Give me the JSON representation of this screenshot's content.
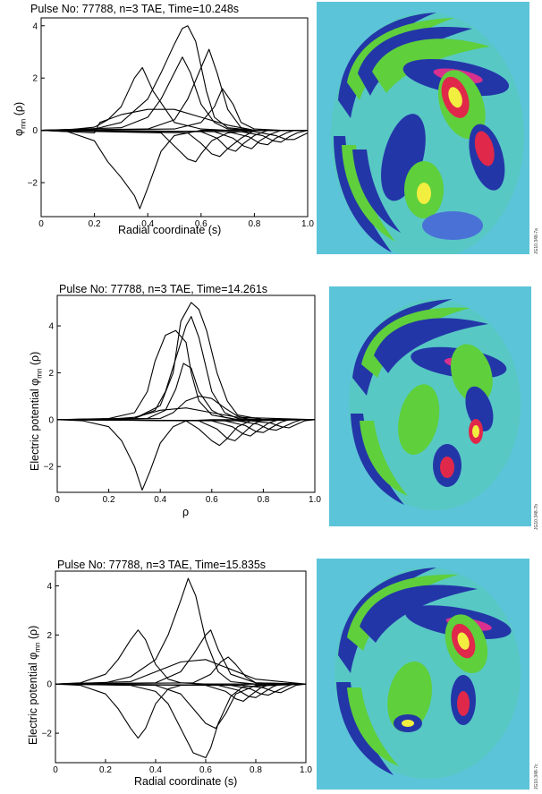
{
  "colors": {
    "cyan_bg": "#5cc4d8",
    "green": "#5fcf3c",
    "dark_green": "#2f8f3a",
    "blue": "#2336a8",
    "light_blue": "#4a72d6",
    "red": "#e0284a",
    "yellow": "#f2ee40",
    "magenta": "#d8308c"
  },
  "panels": [
    {
      "title": "Pulse No: 77788,    n=3 TAE, Time=10.248s",
      "ylabel_main": "φ",
      "ylabel_sub": "mn",
      "ylabel_tail": " (ρ)",
      "xlabel": "Radial coordinate (s)",
      "code": "JG10.348-7a"
    },
    {
      "title": "Pulse No: 77788,    n=3 TAE, Time=14.261s",
      "ylabel_main": "Electric potential φ",
      "ylabel_sub": "mn",
      "ylabel_tail": " (ρ)",
      "xlabel": "ρ",
      "code": "JG10.348-7b"
    },
    {
      "title": "Pulse No: 77788,    n=3 TAE, Time=15.835s",
      "ylabel_main": "Electric potential φ",
      "ylabel_sub": "mn",
      "ylabel_tail": " (ρ)",
      "xlabel": "Radial coordinate (s)",
      "code": "JG10.348-7c"
    }
  ],
  "chart_data": [
    {
      "type": "line",
      "title": "Pulse No: 77788,    n=3 TAE, Time=10.248s",
      "xlabel": "Radial coordinate (s)",
      "ylabel": "φmn (ρ)",
      "xlim": [
        0,
        1
      ],
      "ylim": [
        -3.3,
        4.3
      ],
      "xticks": [
        0,
        0.2,
        0.4,
        0.6,
        0.8,
        1.0
      ],
      "xtick_labels": [
        "0",
        "0.2",
        "0.4",
        "0.6",
        "0.8",
        "1.0"
      ],
      "yticks": [
        -2,
        0,
        2,
        4
      ],
      "ytick_labels": [
        "−2",
        "0",
        "2",
        "4"
      ],
      "series": [
        {
          "x": [
            0,
            0.1,
            0.2,
            0.25,
            0.3,
            0.35,
            0.38,
            0.42,
            0.5,
            0.6,
            0.7,
            0.8,
            0.9,
            1.0
          ],
          "y": [
            0,
            0.02,
            0.12,
            0.4,
            0.9,
            2.0,
            2.4,
            1.5,
            0.3,
            0.05,
            0,
            0,
            0,
            0
          ]
        },
        {
          "x": [
            0,
            0.1,
            0.2,
            0.25,
            0.3,
            0.35,
            0.37,
            0.4,
            0.45,
            0.5,
            0.6,
            0.7,
            0.8,
            1.0
          ],
          "y": [
            0,
            -0.05,
            -0.4,
            -1.2,
            -1.8,
            -2.5,
            -3.0,
            -2.2,
            -0.8,
            -0.2,
            0,
            0,
            0,
            0
          ]
        },
        {
          "x": [
            0,
            0.2,
            0.3,
            0.4,
            0.45,
            0.5,
            0.53,
            0.55,
            0.58,
            0.62,
            0.65,
            0.7,
            0.8,
            1.0
          ],
          "y": [
            0,
            0.05,
            0.3,
            1.2,
            2.2,
            3.3,
            3.9,
            4.0,
            3.4,
            1.5,
            0.5,
            0.1,
            0,
            0
          ]
        },
        {
          "x": [
            0,
            0.3,
            0.4,
            0.45,
            0.5,
            0.53,
            0.56,
            0.6,
            0.65,
            0.7,
            0.8,
            1.0
          ],
          "y": [
            0,
            0.1,
            0.5,
            1.2,
            2.2,
            2.8,
            2.2,
            1.0,
            0.3,
            0.05,
            0,
            0
          ]
        },
        {
          "x": [
            0,
            0.4,
            0.5,
            0.55,
            0.6,
            0.63,
            0.66,
            0.7,
            0.75,
            0.8,
            0.9,
            1.0
          ],
          "y": [
            0,
            0.05,
            0.4,
            1.2,
            2.4,
            3.1,
            2.2,
            0.8,
            0.1,
            0,
            0,
            0
          ]
        },
        {
          "x": [
            0,
            0.2,
            0.22,
            0.3,
            0.4,
            0.5,
            0.6,
            0.7,
            0.8,
            1.0
          ],
          "y": [
            0,
            -0.1,
            0.3,
            0.6,
            0.8,
            0.8,
            0.5,
            0.2,
            0,
            0
          ]
        },
        {
          "x": [
            0,
            0.5,
            0.6,
            0.65,
            0.68,
            0.72,
            0.75,
            0.8,
            0.9,
            1.0
          ],
          "y": [
            0,
            0.05,
            0.3,
            0.9,
            1.6,
            1.0,
            0.3,
            0.05,
            0,
            0
          ]
        },
        {
          "x": [
            0,
            0.45,
            0.5,
            0.55,
            0.58,
            0.6,
            0.64,
            0.7,
            0.8,
            1.0
          ],
          "y": [
            0,
            -0.1,
            -0.6,
            -1.1,
            -1.2,
            -0.9,
            -0.4,
            -0.1,
            0,
            0
          ]
        },
        {
          "x": [
            0,
            0.55,
            0.6,
            0.64,
            0.67,
            0.7,
            0.75,
            0.8,
            0.9,
            1.0
          ],
          "y": [
            0,
            -0.1,
            -0.5,
            -0.9,
            -1.0,
            -0.7,
            -0.3,
            0,
            0,
            0
          ]
        },
        {
          "x": [
            0,
            0.6,
            0.66,
            0.7,
            0.73,
            0.76,
            0.8,
            0.85,
            0.9,
            1.0
          ],
          "y": [
            0,
            -0.05,
            -0.3,
            -0.7,
            -0.8,
            -0.5,
            -0.2,
            0,
            0,
            0
          ]
        },
        {
          "x": [
            0,
            0.65,
            0.72,
            0.76,
            0.79,
            0.82,
            0.86,
            0.9,
            0.95,
            1.0
          ],
          "y": [
            0,
            -0.05,
            -0.3,
            -0.6,
            -0.7,
            -0.4,
            -0.15,
            0,
            0,
            0
          ]
        },
        {
          "x": [
            0,
            0.7,
            0.78,
            0.82,
            0.85,
            0.88,
            0.92,
            0.95,
            1.0
          ],
          "y": [
            0,
            -0.05,
            -0.25,
            -0.5,
            -0.55,
            -0.3,
            -0.1,
            0,
            0
          ]
        },
        {
          "x": [
            0,
            0.75,
            0.83,
            0.87,
            0.9,
            0.93,
            0.96,
            1.0
          ],
          "y": [
            0,
            -0.05,
            -0.2,
            -0.4,
            -0.45,
            -0.25,
            -0.1,
            0
          ]
        },
        {
          "x": [
            0,
            0.8,
            0.88,
            0.92,
            0.95,
            0.98,
            1.0
          ],
          "y": [
            0,
            -0.05,
            -0.2,
            -0.35,
            -0.35,
            -0.2,
            -0.1
          ]
        }
      ]
    },
    {
      "type": "line",
      "title": "Pulse No: 77788,    n=3 TAE, Time=14.261s",
      "xlabel": "ρ",
      "ylabel": "Electric potential φmn (ρ)",
      "xlim": [
        0,
        1
      ],
      "ylim": [
        -3.1,
        5.3
      ],
      "xticks": [
        0,
        0.2,
        0.4,
        0.6,
        0.8,
        1.0
      ],
      "xtick_labels": [
        "0",
        "0.2",
        "0.4",
        "0.6",
        "0.8",
        "1.0"
      ],
      "yticks": [
        -2,
        0,
        2,
        4
      ],
      "ytick_labels": [
        "−2",
        "0",
        "2",
        "4"
      ],
      "series": [
        {
          "x": [
            0,
            0.1,
            0.2,
            0.25,
            0.3,
            0.33,
            0.36,
            0.4,
            0.45,
            0.5,
            0.6,
            0.8,
            1.0
          ],
          "y": [
            0,
            -0.05,
            -0.3,
            -0.9,
            -2.0,
            -3.0,
            -2.2,
            -1.0,
            -0.3,
            -0.05,
            0,
            0,
            0
          ]
        },
        {
          "x": [
            0,
            0.2,
            0.3,
            0.35,
            0.38,
            0.42,
            0.46,
            0.5,
            0.52,
            0.55,
            0.6,
            0.7,
            0.8,
            1.0
          ],
          "y": [
            0,
            0.05,
            0.3,
            1.2,
            2.5,
            3.6,
            3.8,
            3.3,
            2.0,
            0.8,
            0.2,
            0,
            0,
            0
          ]
        },
        {
          "x": [
            0,
            0.3,
            0.38,
            0.42,
            0.46,
            0.5,
            0.52,
            0.55,
            0.6,
            0.65,
            0.7,
            0.8,
            1.0
          ],
          "y": [
            0,
            0.05,
            0.4,
            1.2,
            2.6,
            4.0,
            4.4,
            3.5,
            1.2,
            0.3,
            0.05,
            0,
            0
          ]
        },
        {
          "x": [
            0,
            0.3,
            0.4,
            0.45,
            0.48,
            0.52,
            0.55,
            0.58,
            0.62,
            0.66,
            0.7,
            0.8,
            1.0
          ],
          "y": [
            0,
            0.05,
            0.6,
            2.0,
            4.2,
            5.0,
            4.7,
            3.8,
            2.0,
            0.8,
            0.2,
            0,
            0
          ]
        },
        {
          "x": [
            0,
            0.35,
            0.42,
            0.46,
            0.49,
            0.52,
            0.55,
            0.6,
            0.65,
            0.7,
            1.0
          ],
          "y": [
            0,
            0.05,
            0.4,
            1.3,
            2.4,
            2.2,
            1.2,
            0.4,
            0.1,
            0,
            0
          ]
        },
        {
          "x": [
            0,
            0.4,
            0.45,
            0.5,
            0.55,
            0.6,
            0.65,
            0.7,
            0.75,
            1.0
          ],
          "y": [
            0,
            0.05,
            0.3,
            0.8,
            1.0,
            0.9,
            0.5,
            0.15,
            0,
            0
          ]
        },
        {
          "x": [
            0,
            0.2,
            0.3,
            0.35,
            0.4,
            0.5,
            0.6,
            0.7,
            1.0
          ],
          "y": [
            0,
            0.02,
            0.1,
            0.25,
            0.4,
            0.5,
            0.3,
            0.1,
            0
          ]
        },
        {
          "x": [
            0,
            0.5,
            0.55,
            0.6,
            0.63,
            0.66,
            0.7,
            0.75,
            1.0
          ],
          "y": [
            0,
            -0.05,
            -0.4,
            -0.9,
            -1.1,
            -0.8,
            -0.3,
            -0.05,
            0
          ]
        },
        {
          "x": [
            0,
            0.55,
            0.62,
            0.66,
            0.69,
            0.72,
            0.76,
            0.8,
            1.0
          ],
          "y": [
            0,
            -0.05,
            -0.4,
            -0.8,
            -0.9,
            -0.6,
            -0.2,
            0,
            0
          ]
        },
        {
          "x": [
            0,
            0.6,
            0.68,
            0.72,
            0.75,
            0.78,
            0.82,
            0.86,
            1.0
          ],
          "y": [
            0,
            -0.05,
            -0.3,
            -0.6,
            -0.7,
            -0.45,
            -0.15,
            0,
            0
          ]
        },
        {
          "x": [
            0,
            0.65,
            0.73,
            0.77,
            0.8,
            0.83,
            0.87,
            0.9,
            1.0
          ],
          "y": [
            0,
            -0.05,
            -0.25,
            -0.5,
            -0.55,
            -0.35,
            -0.1,
            0,
            0
          ]
        },
        {
          "x": [
            0,
            0.7,
            0.78,
            0.82,
            0.85,
            0.88,
            0.92,
            0.95,
            1.0
          ],
          "y": [
            0,
            -0.05,
            -0.2,
            -0.4,
            -0.45,
            -0.3,
            -0.1,
            0,
            0
          ]
        },
        {
          "x": [
            0,
            0.75,
            0.83,
            0.87,
            0.9,
            0.93,
            0.96,
            1.0
          ],
          "y": [
            0,
            -0.05,
            -0.15,
            -0.3,
            -0.35,
            -0.2,
            -0.05,
            0
          ]
        }
      ]
    },
    {
      "type": "line",
      "title": "Pulse No: 77788,    n=3 TAE, Time=15.835s",
      "xlabel": "Radial coordinate (s)",
      "ylabel": "Electric potential φmn (ρ)",
      "xlim": [
        0,
        1
      ],
      "ylim": [
        -3.2,
        4.6
      ],
      "xticks": [
        0,
        0.2,
        0.4,
        0.6,
        0.8,
        1.0
      ],
      "xtick_labels": [
        "0",
        "0.2",
        "0.4",
        "0.6",
        "0.8",
        "1.0"
      ],
      "yticks": [
        -2,
        0,
        2,
        4
      ],
      "ytick_labels": [
        "−2",
        "0",
        "2",
        "4"
      ],
      "series": [
        {
          "x": [
            0,
            0.1,
            0.2,
            0.25,
            0.3,
            0.33,
            0.36,
            0.4,
            0.45,
            0.5,
            0.6,
            1.0
          ],
          "y": [
            0,
            0.05,
            0.4,
            1.0,
            1.8,
            2.2,
            1.8,
            0.8,
            0.2,
            0.05,
            0,
            0
          ]
        },
        {
          "x": [
            0,
            0.1,
            0.2,
            0.25,
            0.3,
            0.33,
            0.36,
            0.4,
            0.45,
            0.5,
            0.6,
            1.0
          ],
          "y": [
            0,
            -0.05,
            -0.4,
            -1.0,
            -1.8,
            -2.2,
            -1.8,
            -0.8,
            -0.2,
            -0.05,
            0,
            0
          ]
        },
        {
          "x": [
            0,
            0.2,
            0.3,
            0.4,
            0.45,
            0.5,
            0.53,
            0.56,
            0.6,
            0.65,
            0.7,
            0.8,
            1.0
          ],
          "y": [
            0,
            0.05,
            0.3,
            1.0,
            2.0,
            3.4,
            4.3,
            3.6,
            1.8,
            0.5,
            0.1,
            0,
            0
          ]
        },
        {
          "x": [
            0,
            0.3,
            0.4,
            0.45,
            0.5,
            0.55,
            0.6,
            0.62,
            0.65,
            0.7,
            0.75,
            1.0
          ],
          "y": [
            0,
            -0.05,
            -0.3,
            -0.8,
            -1.8,
            -2.8,
            -3.0,
            -2.6,
            -1.6,
            -0.5,
            -0.1,
            0
          ]
        },
        {
          "x": [
            0,
            0.4,
            0.5,
            0.55,
            0.6,
            0.62,
            0.65,
            0.7,
            0.8,
            1.0
          ],
          "y": [
            0,
            0.05,
            0.5,
            1.2,
            2.0,
            2.2,
            1.4,
            0.4,
            0.05,
            0
          ]
        },
        {
          "x": [
            0,
            0.4,
            0.5,
            0.55,
            0.6,
            0.64,
            0.68,
            0.72,
            0.8,
            1.0
          ],
          "y": [
            0,
            -0.05,
            -0.4,
            -1.0,
            -1.6,
            -1.8,
            -1.2,
            -0.4,
            -0.05,
            0
          ]
        },
        {
          "x": [
            0,
            0.3,
            0.4,
            0.5,
            0.6,
            0.7,
            0.8,
            1.0
          ],
          "y": [
            0,
            0.1,
            0.5,
            0.9,
            1.0,
            0.6,
            0.2,
            0
          ]
        },
        {
          "x": [
            0,
            0.55,
            0.62,
            0.66,
            0.69,
            0.72,
            0.76,
            0.8,
            1.0
          ],
          "y": [
            0,
            0.05,
            0.4,
            0.9,
            1.1,
            0.8,
            0.3,
            0.05,
            0
          ]
        },
        {
          "x": [
            0,
            0.6,
            0.68,
            0.72,
            0.75,
            0.78,
            0.82,
            0.86,
            1.0
          ],
          "y": [
            0,
            -0.05,
            -0.3,
            -0.6,
            -0.7,
            -0.45,
            -0.15,
            0,
            0
          ]
        },
        {
          "x": [
            0,
            0.65,
            0.73,
            0.77,
            0.8,
            0.83,
            0.87,
            0.9,
            1.0
          ],
          "y": [
            0,
            -0.05,
            -0.25,
            -0.5,
            -0.55,
            -0.35,
            -0.1,
            0,
            0
          ]
        },
        {
          "x": [
            0,
            0.7,
            0.78,
            0.82,
            0.85,
            0.88,
            0.92,
            0.95,
            1.0
          ],
          "y": [
            0,
            -0.05,
            -0.2,
            -0.4,
            -0.45,
            -0.3,
            -0.1,
            0,
            0
          ]
        },
        {
          "x": [
            0,
            0.75,
            0.83,
            0.87,
            0.9,
            0.93,
            0.96,
            1.0
          ],
          "y": [
            0,
            -0.05,
            -0.15,
            -0.3,
            -0.35,
            -0.2,
            -0.05,
            0
          ]
        }
      ]
    }
  ]
}
